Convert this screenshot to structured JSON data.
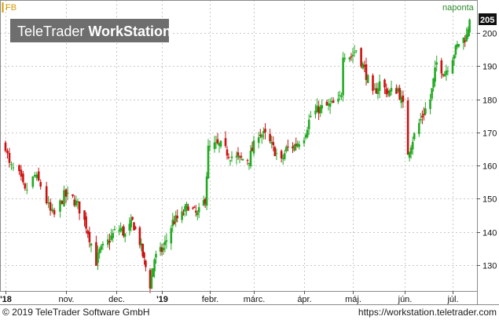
{
  "app": {
    "symbol": "FB",
    "range_label": "naponta",
    "watermark_light": "TeleTrader ",
    "watermark_bold": "WorkStation",
    "last_price": "205"
  },
  "footer": {
    "copyright": "© 2019 TeleTrader Software GmbH",
    "url": "https://workstation.teletrader.com"
  },
  "colors": {
    "up": "#22aa22",
    "down": "#cc1111",
    "grid": "#c8c8c8",
    "symbol": "#d79a00",
    "range": "#2a8a2a",
    "watermark_bg": "#6e6e6e"
  },
  "chart_data": {
    "type": "candlestick",
    "y_ticks": [
      130,
      140,
      150,
      160,
      170,
      180,
      190,
      200
    ],
    "ylim": [
      122,
      207
    ],
    "x_ticks": [
      "'18",
      "nov.",
      "dec.",
      "'19",
      "febr.",
      "márc.",
      "ápr.",
      "máj.",
      "jún.",
      "júl."
    ],
    "anchors": [
      [
        "2018-10-01",
        166
      ],
      [
        "2018-10-03",
        160
      ],
      [
        "2018-10-08",
        157
      ],
      [
        "2018-10-11",
        152
      ],
      [
        "2018-10-16",
        157
      ],
      [
        "2018-10-19",
        154
      ],
      [
        "2018-10-24",
        146
      ],
      [
        "2018-10-26",
        145
      ],
      [
        "2018-10-31",
        151
      ],
      [
        "2018-11-05",
        150
      ],
      [
        "2018-11-08",
        148
      ],
      [
        "2018-11-13",
        142
      ],
      [
        "2018-11-19",
        131
      ],
      [
        "2018-11-21",
        134
      ],
      [
        "2018-11-26",
        137
      ],
      [
        "2018-11-30",
        140
      ],
      [
        "2018-12-04",
        141
      ],
      [
        "2018-12-07",
        139
      ],
      [
        "2018-12-12",
        143
      ],
      [
        "2018-12-17",
        137
      ],
      [
        "2018-12-19",
        133
      ],
      [
        "2018-12-24",
        124
      ],
      [
        "2018-12-27",
        132
      ],
      [
        "2019-01-02",
        135
      ],
      [
        "2019-01-08",
        143
      ],
      [
        "2019-01-14",
        145
      ],
      [
        "2019-01-18",
        148
      ],
      [
        "2019-01-24",
        145
      ],
      [
        "2019-01-29",
        150
      ],
      [
        "2019-01-31",
        165
      ],
      [
        "2019-02-04",
        166
      ],
      [
        "2019-02-08",
        166
      ],
      [
        "2019-02-14",
        163
      ],
      [
        "2019-02-20",
        162
      ],
      [
        "2019-02-26",
        162
      ],
      [
        "2019-03-04",
        170
      ],
      [
        "2019-03-08",
        169
      ],
      [
        "2019-03-12",
        166
      ],
      [
        "2019-03-18",
        161
      ],
      [
        "2019-03-21",
        165
      ],
      [
        "2019-03-26",
        166
      ],
      [
        "2019-04-01",
        169
      ],
      [
        "2019-04-05",
        175
      ],
      [
        "2019-04-10",
        177
      ],
      [
        "2019-04-16",
        178
      ],
      [
        "2019-04-22",
        179
      ],
      [
        "2019-04-24",
        182
      ],
      [
        "2019-04-25",
        194
      ],
      [
        "2019-04-30",
        193
      ],
      [
        "2019-05-03",
        195
      ],
      [
        "2019-05-08",
        189
      ],
      [
        "2019-05-13",
        181
      ],
      [
        "2019-05-17",
        185
      ],
      [
        "2019-05-22",
        182
      ],
      [
        "2019-05-28",
        183
      ],
      [
        "2019-05-31",
        178
      ],
      [
        "2019-06-03",
        164
      ],
      [
        "2019-06-06",
        168
      ],
      [
        "2019-06-12",
        175
      ],
      [
        "2019-06-17",
        180
      ],
      [
        "2019-06-21",
        191
      ],
      [
        "2019-06-26",
        188
      ],
      [
        "2019-07-01",
        193
      ],
      [
        "2019-07-05",
        197
      ],
      [
        "2019-07-10",
        199
      ],
      [
        "2019-07-12",
        205
      ]
    ]
  }
}
